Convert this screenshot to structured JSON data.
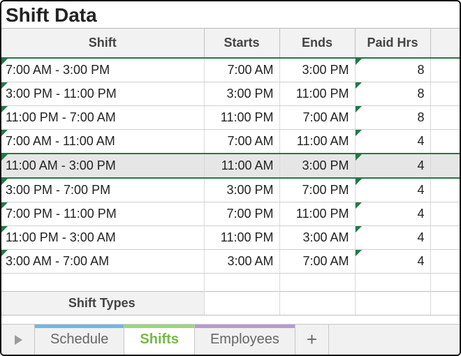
{
  "title": "Shift Data",
  "columns": {
    "shift": "Shift",
    "starts": "Starts",
    "ends": "Ends",
    "paid": "Paid Hrs"
  },
  "rows": [
    {
      "shift": "7:00 AM - 3:00 PM",
      "starts": "7:00 AM",
      "ends": "3:00 PM",
      "paid": "8"
    },
    {
      "shift": "3:00 PM - 11:00 PM",
      "starts": "3:00 PM",
      "ends": "11:00 PM",
      "paid": "8"
    },
    {
      "shift": "11:00 PM - 7:00 AM",
      "starts": "11:00 PM",
      "ends": "7:00 AM",
      "paid": "8"
    },
    {
      "shift": "7:00 AM - 11:00 AM",
      "starts": "7:00 AM",
      "ends": "11:00 AM",
      "paid": "4"
    },
    {
      "shift": "11:00 AM - 3:00 PM",
      "starts": "11:00 AM",
      "ends": "3:00 PM",
      "paid": "4"
    },
    {
      "shift": "3:00 PM - 7:00 PM",
      "starts": "3:00 PM",
      "ends": "7:00 PM",
      "paid": "4"
    },
    {
      "shift": "7:00 PM - 11:00 PM",
      "starts": "7:00 PM",
      "ends": "11:00 PM",
      "paid": "4"
    },
    {
      "shift": "11:00 PM - 3:00 AM",
      "starts": "11:00 PM",
      "ends": "3:00 AM",
      "paid": "4"
    },
    {
      "shift": "3:00 AM - 7:00 AM",
      "starts": "3:00 AM",
      "ends": "7:00 AM",
      "paid": "4"
    }
  ],
  "selected_row_index": 4,
  "shift_types_header": "Shift Types",
  "tabs": [
    {
      "label": "Schedule",
      "stripe_color": "#6fb8e6",
      "active": false
    },
    {
      "label": "Shifts",
      "stripe_color": "#9bd77b",
      "active": true
    },
    {
      "label": "Employees",
      "stripe_color": "#b79ad1",
      "active": false
    }
  ],
  "style": {
    "header_bg": "#f2f2f2",
    "accent_green": "#1f7a46",
    "active_tab_text": "#76b946",
    "row_selected_bg": "#e6e6e6",
    "grid_border": "#d0d0d0"
  }
}
